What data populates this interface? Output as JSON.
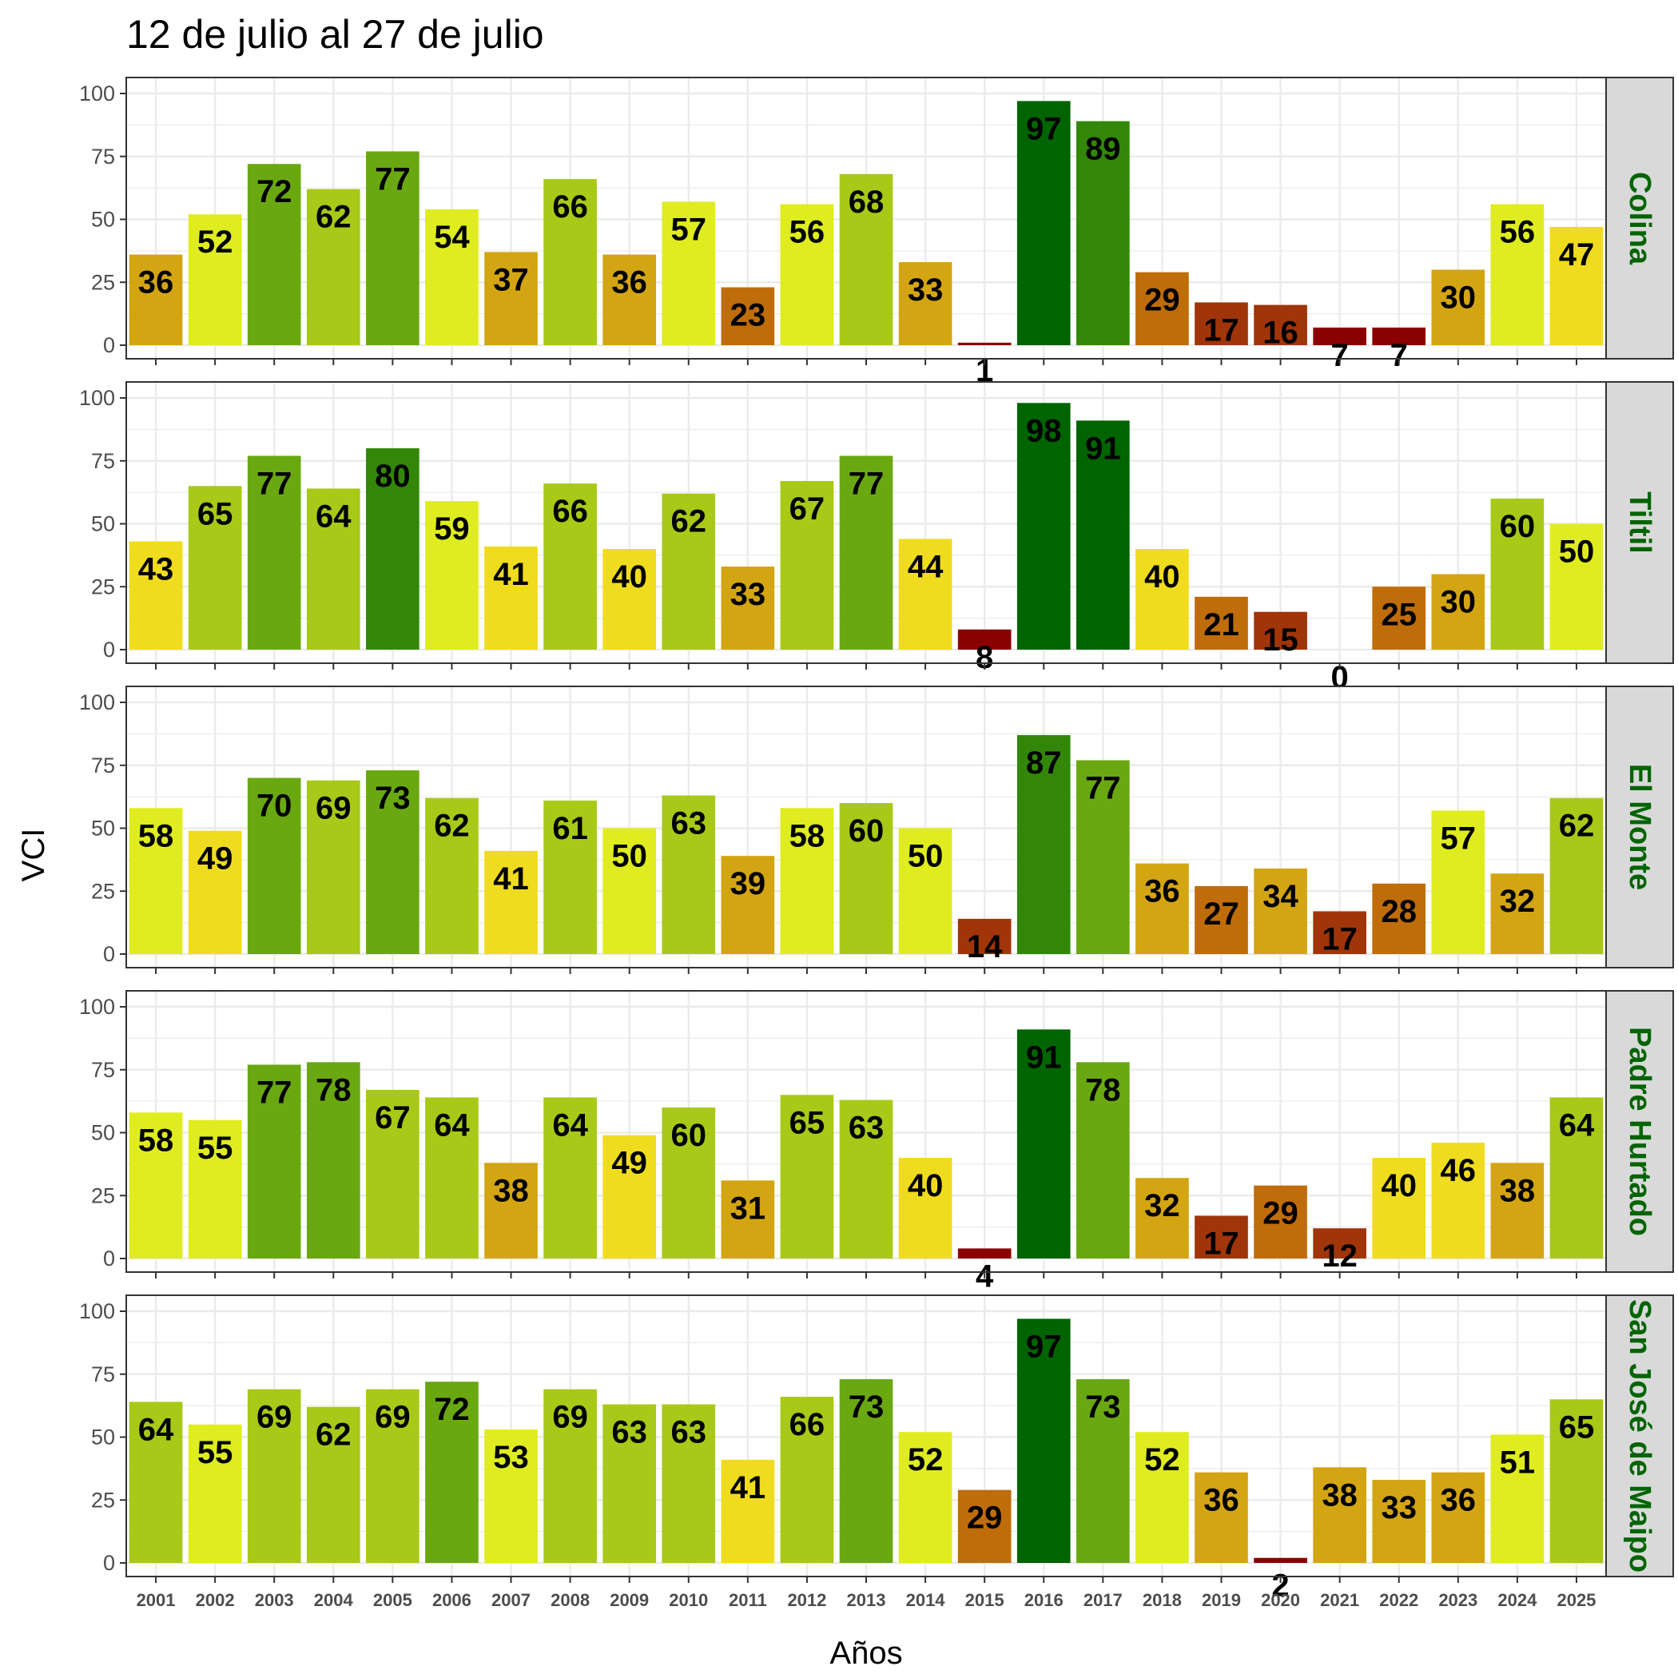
{
  "chart_data": {
    "type": "bar",
    "title": "12 de julio al 27 de julio",
    "xlabel": "Años",
    "ylabel": "VCI",
    "ylim": [
      0,
      100
    ],
    "yticks": [
      0,
      25,
      50,
      75,
      100
    ],
    "grid": true,
    "categories": [
      "2001",
      "2002",
      "2003",
      "2004",
      "2005",
      "2006",
      "2007",
      "2008",
      "2009",
      "2010",
      "2011",
      "2012",
      "2013",
      "2014",
      "2015",
      "2016",
      "2017",
      "2018",
      "2019",
      "2020",
      "2021",
      "2022",
      "2023",
      "2024",
      "2025"
    ],
    "series": [
      {
        "name": "Colina",
        "values": [
          36,
          52,
          72,
          62,
          77,
          54,
          37,
          66,
          36,
          57,
          23,
          56,
          68,
          33,
          1,
          97,
          89,
          29,
          17,
          16,
          7,
          7,
          30,
          56,
          47
        ]
      },
      {
        "name": "Tiltil",
        "values": [
          43,
          65,
          77,
          64,
          80,
          59,
          41,
          66,
          40,
          62,
          33,
          67,
          77,
          44,
          8,
          98,
          91,
          40,
          21,
          15,
          0,
          25,
          30,
          60,
          50
        ]
      },
      {
        "name": "El Monte",
        "values": [
          58,
          49,
          70,
          69,
          73,
          62,
          41,
          61,
          50,
          63,
          39,
          58,
          60,
          50,
          14,
          87,
          77,
          36,
          27,
          34,
          17,
          28,
          57,
          32,
          62
        ]
      },
      {
        "name": "Padre Hurtado",
        "values": [
          58,
          55,
          77,
          78,
          67,
          64,
          38,
          64,
          49,
          60,
          31,
          65,
          63,
          40,
          4,
          91,
          78,
          32,
          17,
          29,
          12,
          40,
          46,
          38,
          64
        ]
      },
      {
        "name": "San José de Maipo",
        "values": [
          64,
          55,
          69,
          62,
          69,
          72,
          53,
          69,
          63,
          63,
          41,
          66,
          73,
          52,
          29,
          97,
          73,
          52,
          36,
          2,
          38,
          33,
          36,
          51,
          65
        ]
      }
    ],
    "colors": {
      "panel_border": "#333333",
      "grid": "#ebebeb",
      "strip_fill": "#d9d9d9",
      "strip_text": "#006400",
      "scale": [
        "#8b0000",
        "#a0350a",
        "#bf6c0a",
        "#d4a512",
        "#f0dc1e",
        "#dfec20",
        "#a8c918",
        "#6aa812",
        "#338708",
        "#006400"
      ]
    }
  }
}
